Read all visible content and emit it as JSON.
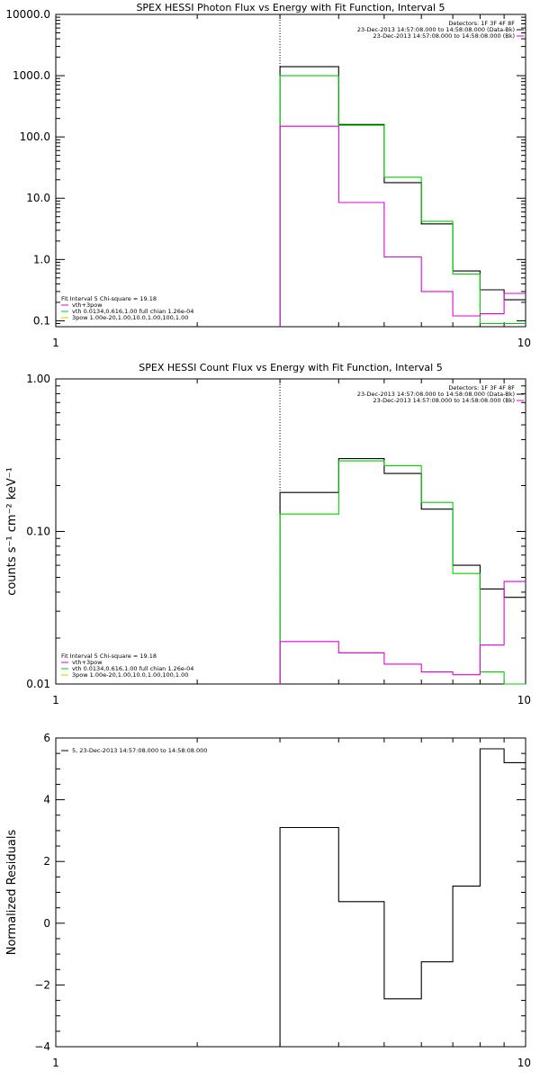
{
  "chart_data": [
    {
      "type": "line",
      "title": "SPEX HESSI Photon Flux vs Energy with Fit Function, Interval 5",
      "xlabel": "",
      "ylabel": "",
      "x_scale": "log",
      "y_scale": "log",
      "xlim": [
        1,
        10
      ],
      "ylim": [
        0.08,
        10000
      ],
      "x_ticks": [
        "1",
        "10"
      ],
      "y_ticks": [
        {
          "value": 0.1,
          "label": "0.1"
        },
        {
          "value": 1,
          "label": "1.0"
        },
        {
          "value": 10,
          "label": "10.0"
        },
        {
          "value": 100,
          "label": "100.0"
        },
        {
          "value": 1000,
          "label": "1000.0"
        },
        {
          "value": 10000,
          "label": "10000.0"
        }
      ],
      "vline_x": 3,
      "bin_edges": [
        3,
        4,
        5,
        6,
        7,
        8,
        9,
        10
      ],
      "series": [
        {
          "color": "#000000",
          "values": [
            1400,
            160,
            18,
            3.8,
            0.65,
            0.32,
            0.22
          ]
        },
        {
          "color": "#00d000",
          "values": [
            1000,
            155,
            22,
            4.2,
            0.58,
            0.09,
            0.09
          ]
        },
        {
          "color": "#e000e0",
          "values": [
            150,
            8.5,
            1.1,
            0.3,
            0.12,
            0.13,
            0.28
          ]
        }
      ],
      "legend_right": [
        {
          "text": "Detectors: 1F 3F 4F 8F",
          "color": "",
          "line": false
        },
        {
          "text": "23-Dec-2013 14:57:08.000 to 14:58:08.000 (Data-Bk)",
          "color": "#000000",
          "line": true
        },
        {
          "text": "23-Dec-2013 14:57:08.000 to 14:58:08.000 (Bk)",
          "color": "#e000e0",
          "line": true
        }
      ],
      "legend_left": [
        {
          "text": "Fit Interval 5   Chi-square = 19.18",
          "color": "",
          "line": false
        },
        {
          "text": "vth+3pow",
          "color": "#e000e0",
          "line": true
        },
        {
          "text": "vth 0.0134,0.616,1.00  full chian 1.26e-04",
          "color": "#00d000",
          "line": true
        },
        {
          "text": "3pow 1.00e-20,1.00,10.0,1.00,100,1.00",
          "color": "#e0c000",
          "line": true
        }
      ]
    },
    {
      "type": "line",
      "title": "SPEX HESSI Count Flux vs Energy with Fit Function, Interval 5",
      "xlabel": "",
      "ylabel": "counts s⁻¹ cm⁻² keV⁻¹",
      "x_scale": "log",
      "y_scale": "log",
      "xlim": [
        1,
        10
      ],
      "ylim": [
        0.01,
        1
      ],
      "x_ticks": [
        "1",
        "10"
      ],
      "y_ticks": [
        {
          "value": 0.01,
          "label": "0.01"
        },
        {
          "value": 0.1,
          "label": "0.10"
        },
        {
          "value": 1,
          "label": "1.00"
        }
      ],
      "vline_x": 3,
      "bin_edges": [
        3,
        4,
        5,
        6,
        7,
        8,
        9,
        10
      ],
      "series": [
        {
          "color": "#000000",
          "values": [
            0.18,
            0.3,
            0.24,
            0.14,
            0.06,
            0.042,
            0.037
          ]
        },
        {
          "color": "#00d000",
          "values": [
            0.13,
            0.29,
            0.27,
            0.155,
            0.053,
            0.012,
            0.006
          ]
        },
        {
          "color": "#e000e0",
          "values": [
            0.019,
            0.016,
            0.0135,
            0.012,
            0.0115,
            0.018,
            0.047
          ]
        }
      ],
      "legend_right": [
        {
          "text": "Detectors: 1F 3F 4F 8F",
          "color": "",
          "line": false
        },
        {
          "text": "23-Dec-2013 14:57:08.000 to 14:58:08.000 (Data-Bk)",
          "color": "#000000",
          "line": true
        },
        {
          "text": "23-Dec-2013 14:57:08.000 to 14:58:08.000 (Bk)",
          "color": "#e000e0",
          "line": true
        }
      ],
      "legend_left": [
        {
          "text": "Fit Interval 5   Chi-square = 19.18",
          "color": "",
          "line": false
        },
        {
          "text": "vth+3pow",
          "color": "#e000e0",
          "line": true
        },
        {
          "text": "vth 0.0134,0.616,1.00  full chian 1.26e-04",
          "color": "#00d000",
          "line": true
        },
        {
          "text": "3pow 1.00e-20,1.00,10.0,1.00,100,1.00",
          "color": "#e0c000",
          "line": true
        }
      ]
    },
    {
      "type": "line",
      "title": "",
      "xlabel": "",
      "ylabel": "Normalized Residuals",
      "x_scale": "log",
      "y_scale": "linear",
      "xlim": [
        1,
        10
      ],
      "ylim": [
        -4,
        6
      ],
      "x_ticks": [
        "1",
        "10"
      ],
      "y_ticks": [
        {
          "value": -4,
          "label": "−4"
        },
        {
          "value": -2,
          "label": "−2"
        },
        {
          "value": 0,
          "label": "0"
        },
        {
          "value": 2,
          "label": "2"
        },
        {
          "value": 4,
          "label": "4"
        },
        {
          "value": 6,
          "label": "6"
        }
      ],
      "vline_x": null,
      "bin_edges": [
        3,
        4,
        5,
        6,
        7,
        8,
        9,
        10
      ],
      "series": [
        {
          "color": "#000000",
          "values": [
            3.1,
            0.7,
            -2.45,
            -1.25,
            1.2,
            5.65,
            5.2
          ]
        }
      ],
      "legend_right": [],
      "legend_left": [
        {
          "text": "5, 23-Dec-2013 14:57:08.000 to 14:58:08.000",
          "color": "#000000",
          "line": true
        }
      ]
    }
  ]
}
